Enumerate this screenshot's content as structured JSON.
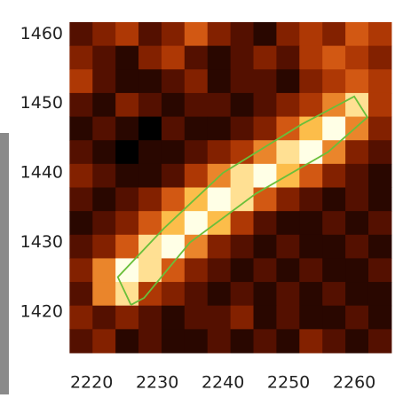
{
  "chart_data": {
    "type": "heatmap",
    "x": [
      2218.4,
      2221.9,
      2225.4,
      2228.9,
      2232.4,
      2235.9,
      2239.4,
      2242.9,
      2246.4,
      2249.9,
      2253.4,
      2256.9,
      2260.4,
      2263.9
    ],
    "y": [
      1460.0,
      1456.6,
      1453.2,
      1449.8,
      1446.4,
      1443.0,
      1439.6,
      1436.2,
      1432.8,
      1429.4,
      1426.0,
      1422.6,
      1419.2,
      1415.8
    ],
    "z": [
      [
        2,
        3,
        4,
        2,
        3,
        5,
        3,
        2,
        1,
        3,
        4,
        3,
        5,
        4
      ],
      [
        3,
        2,
        1,
        3,
        4,
        2,
        1,
        2,
        3,
        2,
        4,
        5,
        4,
        3
      ],
      [
        4,
        2,
        1,
        1,
        2,
        3,
        1,
        2,
        2,
        1,
        3,
        4,
        5,
        4
      ],
      [
        2,
        1,
        3,
        2,
        1,
        2,
        2,
        1,
        2,
        3,
        4,
        6,
        8,
        4
      ],
      [
        1,
        2,
        1,
        0,
        2,
        1,
        1,
        2,
        3,
        5,
        7,
        9,
        6,
        3
      ],
      [
        2,
        1,
        0,
        1,
        1,
        2,
        3,
        4,
        6,
        8,
        9,
        6,
        3,
        2
      ],
      [
        3,
        2,
        1,
        1,
        2,
        4,
        6,
        8,
        9,
        7,
        5,
        3,
        2,
        1
      ],
      [
        2,
        1,
        2,
        3,
        5,
        7,
        9,
        8,
        5,
        3,
        2,
        1,
        2,
        1
      ],
      [
        1,
        2,
        3,
        5,
        7,
        9,
        7,
        4,
        2,
        1,
        1,
        2,
        1,
        2
      ],
      [
        2,
        3,
        5,
        8,
        9,
        6,
        3,
        2,
        1,
        2,
        1,
        1,
        2,
        1
      ],
      [
        3,
        6,
        9,
        8,
        5,
        3,
        2,
        1,
        2,
        1,
        2,
        1,
        1,
        2
      ],
      [
        2,
        6,
        8,
        4,
        3,
        2,
        1,
        2,
        1,
        2,
        1,
        2,
        1,
        1
      ],
      [
        3,
        2,
        3,
        2,
        1,
        2,
        2,
        3,
        1,
        2,
        1,
        1,
        2,
        1
      ],
      [
        2,
        3,
        1,
        2,
        1,
        1,
        2,
        1,
        2,
        1,
        3,
        2,
        1,
        2
      ]
    ],
    "zlim": [
      0,
      9
    ],
    "colormap": [
      "#000000",
      "#4a0c00",
      "#a02c00",
      "#e06418",
      "#ffc850",
      "#ffffe6"
    ],
    "contour": {
      "color": "#6abf3a",
      "x": [
        2226,
        2224,
        2231,
        2240,
        2252,
        2260,
        2262,
        2256,
        2245,
        2235,
        2228,
        2226
      ],
      "y": [
        1421,
        1425,
        1432,
        1440,
        1447,
        1451,
        1448,
        1443,
        1437,
        1430,
        1422,
        1421
      ]
    },
    "xlim": [
      2216.6,
      2265.8
    ],
    "ylim": [
      1414.1,
      1461.7
    ],
    "xticks": [
      2220,
      2230,
      2240,
      2250,
      2260
    ],
    "yticks": [
      1420,
      1430,
      1440,
      1450,
      1460
    ]
  }
}
